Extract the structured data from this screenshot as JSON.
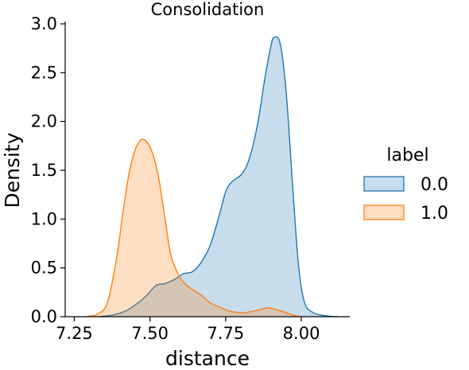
{
  "chart_data": {
    "type": "area",
    "title": "Consolidation",
    "xlabel": "distance",
    "ylabel": "Density",
    "xlim": [
      7.22,
      8.16
    ],
    "ylim": [
      0,
      3.0
    ],
    "xticks": [
      7.25,
      7.5,
      7.75,
      8.0
    ],
    "xtick_labels": [
      "7.25",
      "7.50",
      "7.75",
      "8.00"
    ],
    "yticks": [
      0,
      0.5,
      1.0,
      1.5,
      2.0,
      2.5,
      3.0
    ],
    "ytick_labels": [
      "0.0",
      "0.5",
      "1.0",
      "1.5",
      "2.0",
      "2.5",
      "3.0"
    ],
    "grid": false,
    "legend": {
      "title": "label",
      "placement": "right"
    },
    "series": [
      {
        "name": "0.0",
        "color": "#1f77b4",
        "x": [
          7.33,
          7.38,
          7.42,
          7.46,
          7.49,
          7.52,
          7.55,
          7.58,
          7.61,
          7.64,
          7.67,
          7.7,
          7.73,
          7.75,
          7.77,
          7.8,
          7.82,
          7.84,
          7.86,
          7.88,
          7.9,
          7.91,
          7.93,
          7.95,
          7.97,
          7.99,
          8.01,
          8.04,
          8.08,
          8.12
        ],
        "y": [
          0.0,
          0.02,
          0.06,
          0.14,
          0.22,
          0.32,
          0.34,
          0.38,
          0.44,
          0.46,
          0.56,
          0.74,
          1.05,
          1.28,
          1.38,
          1.45,
          1.55,
          1.75,
          2.05,
          2.45,
          2.78,
          2.86,
          2.8,
          2.3,
          1.4,
          0.55,
          0.15,
          0.04,
          0.01,
          0.0
        ]
      },
      {
        "name": "1.0",
        "color": "#ff7f0e",
        "x": [
          7.29,
          7.33,
          7.36,
          7.39,
          7.41,
          7.43,
          7.45,
          7.47,
          7.49,
          7.51,
          7.53,
          7.55,
          7.57,
          7.6,
          7.63,
          7.67,
          7.7,
          7.73,
          7.76,
          7.8,
          7.83,
          7.86,
          7.89,
          7.92,
          7.95,
          7.98,
          8.0
        ],
        "y": [
          0.0,
          0.03,
          0.15,
          0.6,
          1.05,
          1.45,
          1.7,
          1.81,
          1.79,
          1.66,
          1.4,
          1.0,
          0.62,
          0.4,
          0.3,
          0.22,
          0.14,
          0.1,
          0.06,
          0.04,
          0.05,
          0.07,
          0.09,
          0.07,
          0.04,
          0.01,
          0.0
        ]
      }
    ]
  }
}
